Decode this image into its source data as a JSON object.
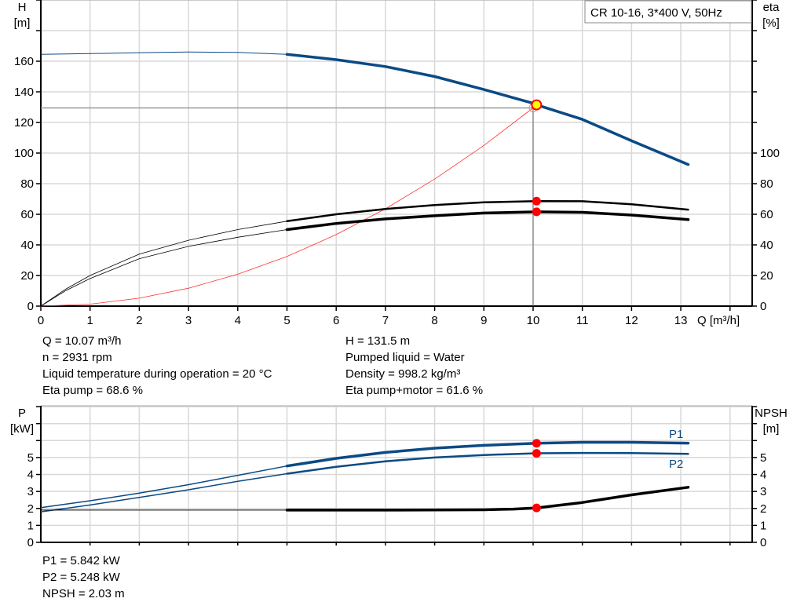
{
  "chart_data": [
    {
      "type": "line",
      "title": "CR 10-16, 3*400 V, 50Hz",
      "xlabel": "Q [m³/h]",
      "ylabel": "H\n[m]",
      "ylabel_left": [
        "H",
        "[m]"
      ],
      "ylabel_right": [
        "eta",
        "[%]"
      ],
      "xlim": [
        0,
        14.45
      ],
      "ylim": [
        0,
        200
      ],
      "y2lim": [
        0,
        200
      ],
      "x_ticks": [
        "0",
        "1",
        "2",
        "3",
        "4",
        "5",
        "6",
        "7",
        "8",
        "9",
        "10",
        "11",
        "12",
        "13"
      ],
      "y_ticks": [
        "0",
        "20",
        "40",
        "60",
        "80",
        "100",
        "120",
        "140",
        "160"
      ],
      "y2_ticks": [
        "0",
        "20",
        "40",
        "60",
        "80",
        "100"
      ],
      "grid": true,
      "colors": {
        "head": "#0b4a85",
        "eta": "#000000",
        "system": "#ff3030",
        "marker": "#ff0000",
        "duty_marker": "#ffff00"
      },
      "series": [
        {
          "key": "head",
          "x": [
            0,
            1,
            2,
            3,
            4,
            5,
            6,
            7,
            8,
            9,
            10,
            10.07,
            11,
            12,
            13.15
          ],
          "y": [
            164.5,
            165,
            165.6,
            166,
            165.8,
            164.5,
            161,
            156.5,
            150,
            141.5,
            132.5,
            131.5,
            122,
            108,
            92.5
          ]
        },
        {
          "key": "eta_pump",
          "x": [
            0,
            0.5,
            1,
            2,
            3,
            4,
            5,
            6,
            7,
            8,
            9,
            10.07,
            11,
            12,
            13.15
          ],
          "y": [
            0,
            11,
            20,
            34,
            43,
            50,
            55.5,
            60,
            63.5,
            66,
            67.8,
            68.6,
            68.5,
            66.5,
            63
          ]
        },
        {
          "key": "eta_pump_motor",
          "x": [
            0,
            0.5,
            1,
            2,
            3,
            4,
            5,
            6,
            7,
            8,
            9,
            10.07,
            11,
            12,
            13.15
          ],
          "y": [
            0,
            10,
            18,
            31,
            39,
            45,
            50,
            54,
            57,
            59,
            60.8,
            61.6,
            61.3,
            59.5,
            56.5
          ]
        },
        {
          "key": "system_curve",
          "x": [
            0,
            1,
            2,
            3,
            4,
            5,
            6,
            7,
            8,
            9,
            10
          ],
          "y": [
            0,
            1.3,
            5.2,
            11.7,
            20.8,
            32.4,
            46.7,
            63.6,
            83,
            105,
            129.5
          ]
        }
      ],
      "duty_point": {
        "Q": 10.07,
        "H": 131.5,
        "eta_pump": 68.6,
        "eta_pump_motor": 61.6,
        "reference_H": 129.5
      }
    },
    {
      "type": "line",
      "xlim": [
        0,
        14.45
      ],
      "ylim": [
        0,
        8.05
      ],
      "ylabel_left": [
        "P",
        "[kW]"
      ],
      "ylabel_right": [
        "NPSH",
        "[m]"
      ],
      "y_ticks": [
        "0",
        "1",
        "2",
        "3",
        "4",
        "5"
      ],
      "y2_ticks": [
        "0",
        "1",
        "2",
        "3",
        "4",
        "5"
      ],
      "grid": true,
      "colors": {
        "P1": "#0b4a85",
        "P2": "#0b4a85",
        "NPSH": "#000000",
        "marker": "#ff0000"
      },
      "series": [
        {
          "name": "P1",
          "key": "P1",
          "x": [
            0,
            1,
            2,
            3,
            4,
            5,
            6,
            7,
            8,
            9,
            10.07,
            11,
            12,
            13.15
          ],
          "y": [
            2.05,
            2.45,
            2.9,
            3.4,
            3.95,
            4.5,
            4.95,
            5.3,
            5.55,
            5.72,
            5.84,
            5.9,
            5.9,
            5.85
          ]
        },
        {
          "name": "P2",
          "key": "P2",
          "x": [
            0,
            1,
            2,
            3,
            4,
            5,
            6,
            7,
            8,
            9,
            10.07,
            11,
            12,
            13.15
          ],
          "y": [
            1.8,
            2.2,
            2.65,
            3.1,
            3.6,
            4.05,
            4.45,
            4.78,
            5.0,
            5.15,
            5.25,
            5.27,
            5.26,
            5.22
          ]
        },
        {
          "key": "NPSH",
          "x": [
            0,
            2,
            5,
            7,
            9,
            9.6,
            10.07,
            11,
            12,
            13.15
          ],
          "y": [
            1.9,
            1.9,
            1.9,
            1.9,
            1.92,
            1.96,
            2.03,
            2.35,
            2.8,
            3.25
          ]
        }
      ],
      "duty_point": {
        "Q": 10.07,
        "P1": 5.842,
        "P2": 5.248,
        "NPSH": 2.03
      }
    }
  ],
  "results_top": {
    "left": [
      "Q = 10.07 m³/h",
      "n = 2931 rpm",
      "Liquid temperature during operation = 20 °C",
      "Eta pump = 68.6 %"
    ],
    "right": [
      "H = 131.5 m",
      "Pumped liquid = Water",
      "Density = 998.2 kg/m³",
      "Eta pump+motor = 61.6 %"
    ]
  },
  "results_bottom": [
    "P1 = 5.842 kW",
    "P2 = 5.248 kW",
    "NPSH = 2.03 m"
  ]
}
